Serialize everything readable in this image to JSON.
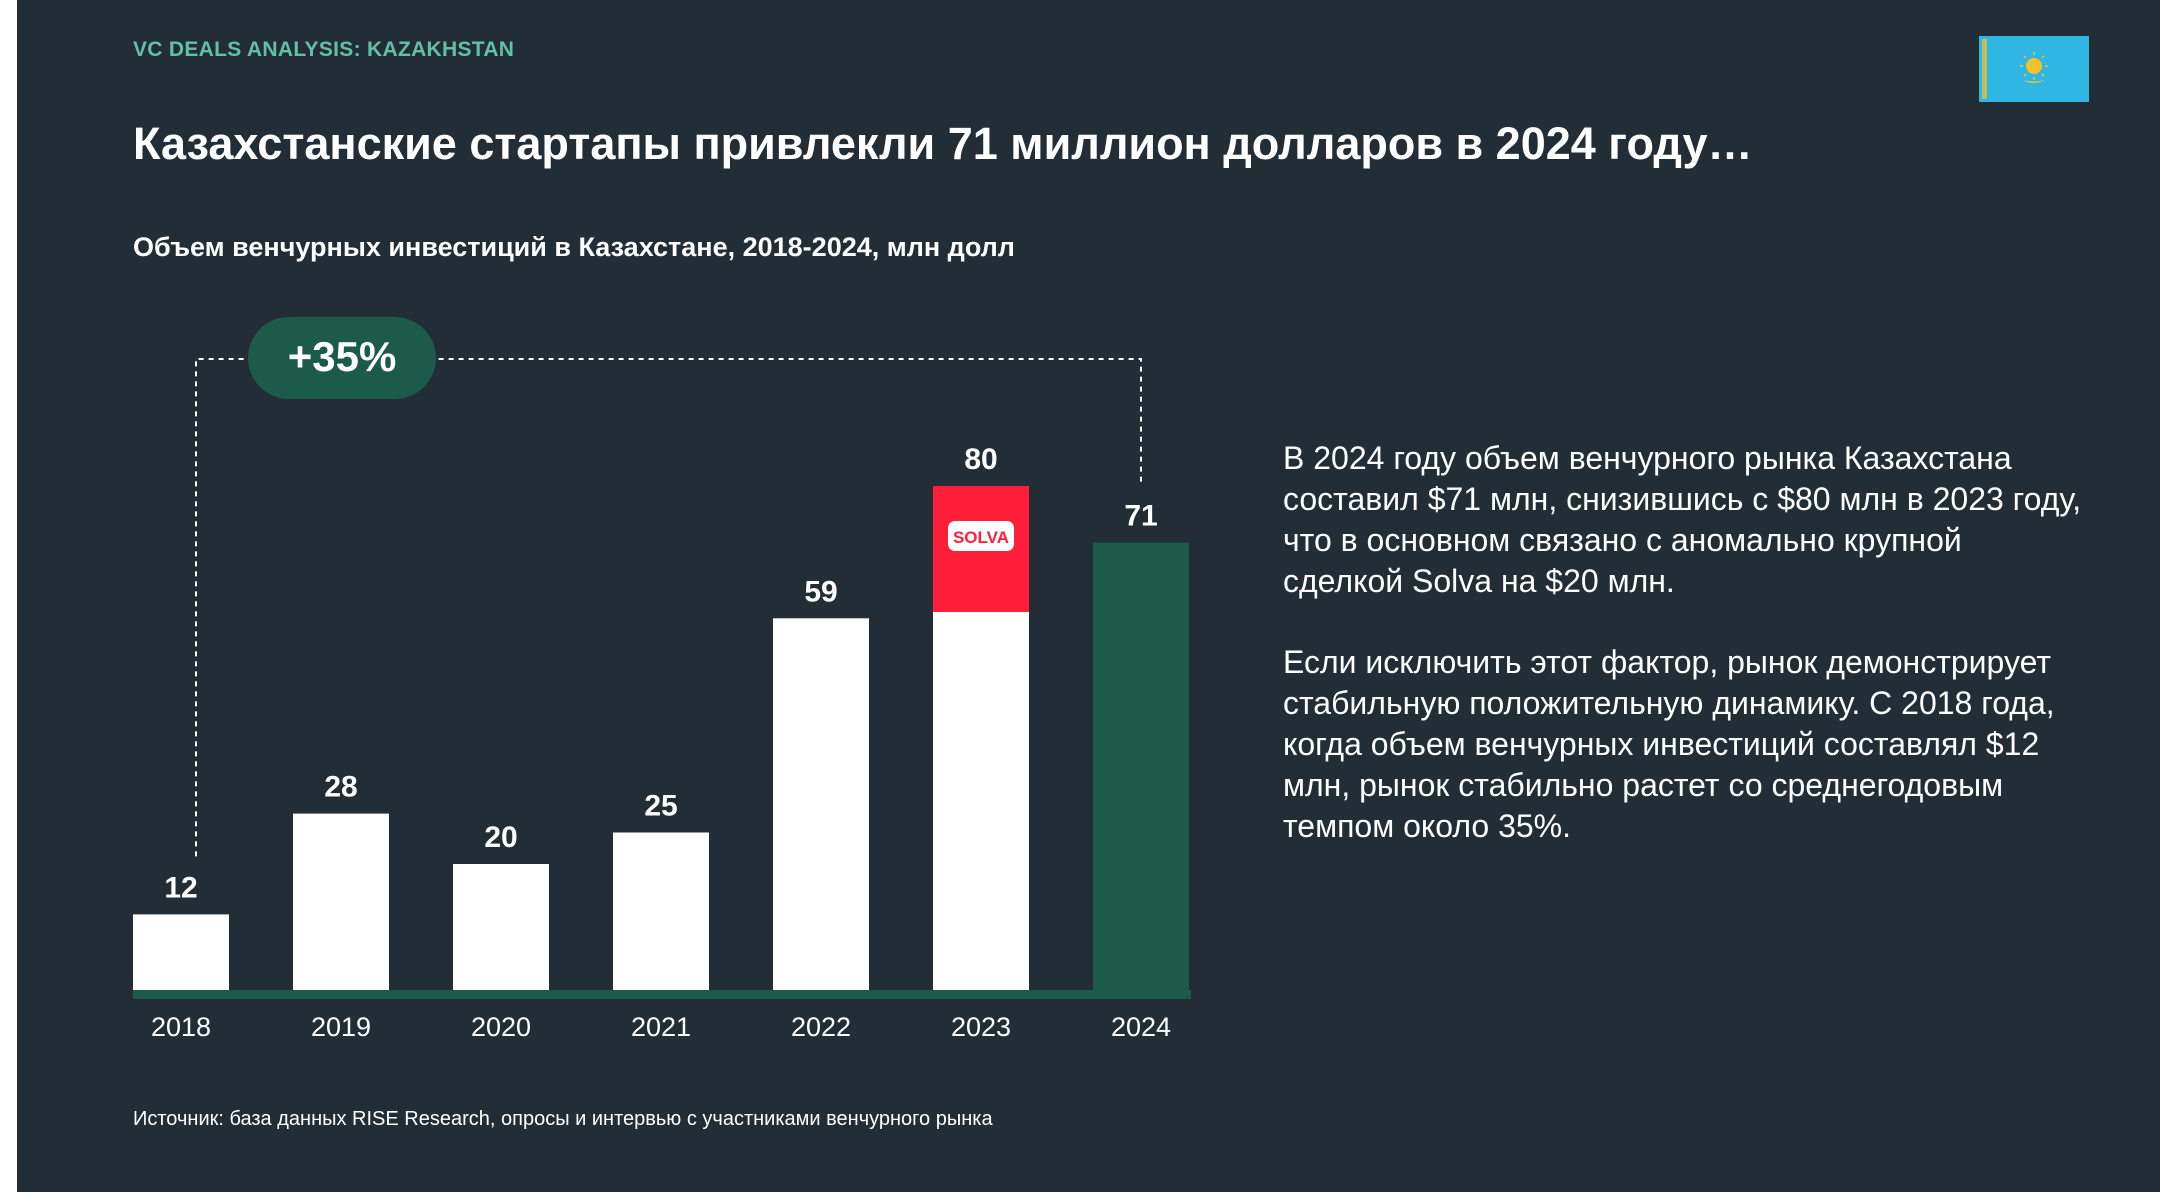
{
  "header": {
    "kicker": "VC DEALS ANALYSIS: KAZAKHSTAN",
    "flag_icon": "kazakhstan-flag-icon",
    "title": "Казахстанские стартапы привлекли 71 миллион долларов в 2024 году…"
  },
  "chart_data": {
    "type": "bar",
    "title": "Объем венчурных инвестиций в Казахстане, 2018-2024, млн долл",
    "xlabel": "",
    "ylabel": "",
    "categories": [
      "2018",
      "2019",
      "2020",
      "2021",
      "2022",
      "2023",
      "2024"
    ],
    "values": [
      12,
      28,
      20,
      25,
      59,
      80,
      71
    ],
    "data_labels": [
      "12",
      "28",
      "20",
      "25",
      "59",
      "80",
      "71"
    ],
    "highlight": {
      "category": "2023",
      "segment_value": 20,
      "segment_label": "SOLVA",
      "color": "#ff1f38"
    },
    "highlight_bar": {
      "category": "2024",
      "color": "#1c5a4a"
    },
    "bar_color": "#ffffff",
    "baseline_color": "#1c5a4a",
    "growth_annotation": {
      "label": "+35%",
      "from": "2018",
      "to": "2024"
    },
    "grid": false,
    "legend": "none"
  },
  "commentary": {
    "paragraph_1": "В 2024 году объем венчурного рынка Казахстана составил $71 млн, снизившись с $80 млн в 2023 году, что в основном связано с аномально крупной сделкой Solva на $20 млн.",
    "paragraph_2": "Если исключить этот фактор, рынок демонстрирует стабильную положительную динамику. С 2018 года, когда объем венчурных инвестиций составлял $12 млн, рынок стабильно растет со среднегодовым темпом около 35%."
  },
  "source": "Источник: база данных RISE Research, опросы и интервью с участниками венчурного рынка",
  "colors": {
    "background": "#222d35",
    "accent_green": "#63c0a5",
    "dark_green": "#1c5a4a",
    "solva_red": "#ff1f38"
  }
}
